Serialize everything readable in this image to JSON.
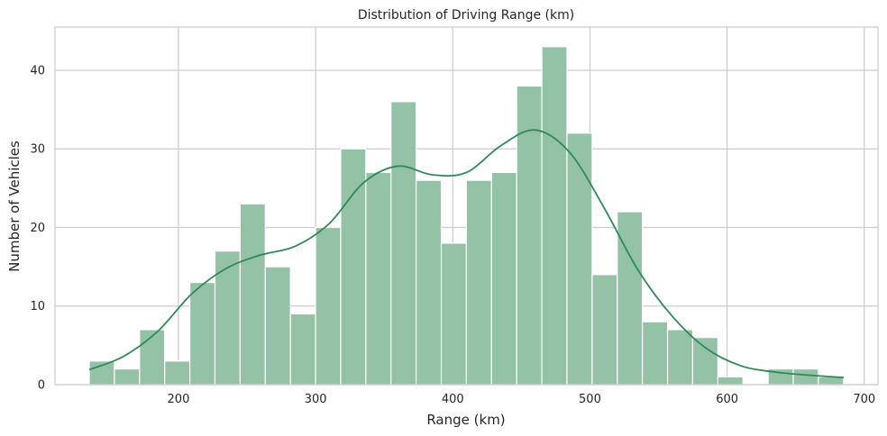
{
  "chart_data": {
    "type": "bar",
    "subtype": "histogram-with-kde",
    "title": "Distribution of Driving Range (km)",
    "xlabel": "Range (km)",
    "ylabel": "Number of Vehicles",
    "xlim": [
      110,
      710
    ],
    "ylim": [
      0,
      45.5
    ],
    "xticks": [
      200,
      300,
      400,
      500,
      600,
      700
    ],
    "yticks": [
      0,
      10,
      20,
      30,
      40
    ],
    "grid": true,
    "bins": {
      "start": 135,
      "width": 18.33,
      "counts": [
        3,
        2,
        7,
        3,
        13,
        17,
        23,
        15,
        9,
        20,
        30,
        27,
        36,
        26,
        18,
        26,
        27,
        38,
        43,
        32,
        14,
        22,
        8,
        7,
        6,
        1,
        0,
        2,
        2,
        1
      ]
    },
    "kde": {
      "x": [
        135,
        160,
        185,
        210,
        235,
        260,
        285,
        310,
        335,
        360,
        385,
        410,
        435,
        460,
        485,
        510,
        535,
        560,
        585,
        610,
        635,
        660,
        685
      ],
      "y": [
        1.9,
        3.6,
        6.8,
        11.6,
        14.8,
        16.5,
        17.6,
        20.5,
        25.7,
        27.8,
        26.7,
        27.0,
        30.4,
        32.4,
        29.6,
        22.6,
        14.6,
        8.7,
        4.6,
        2.4,
        1.6,
        1.2,
        0.9
      ]
    },
    "colors": {
      "bar": "#93c2a6",
      "kde": "#2e8b57",
      "grid": "#cccccc",
      "text": "#262626"
    }
  }
}
